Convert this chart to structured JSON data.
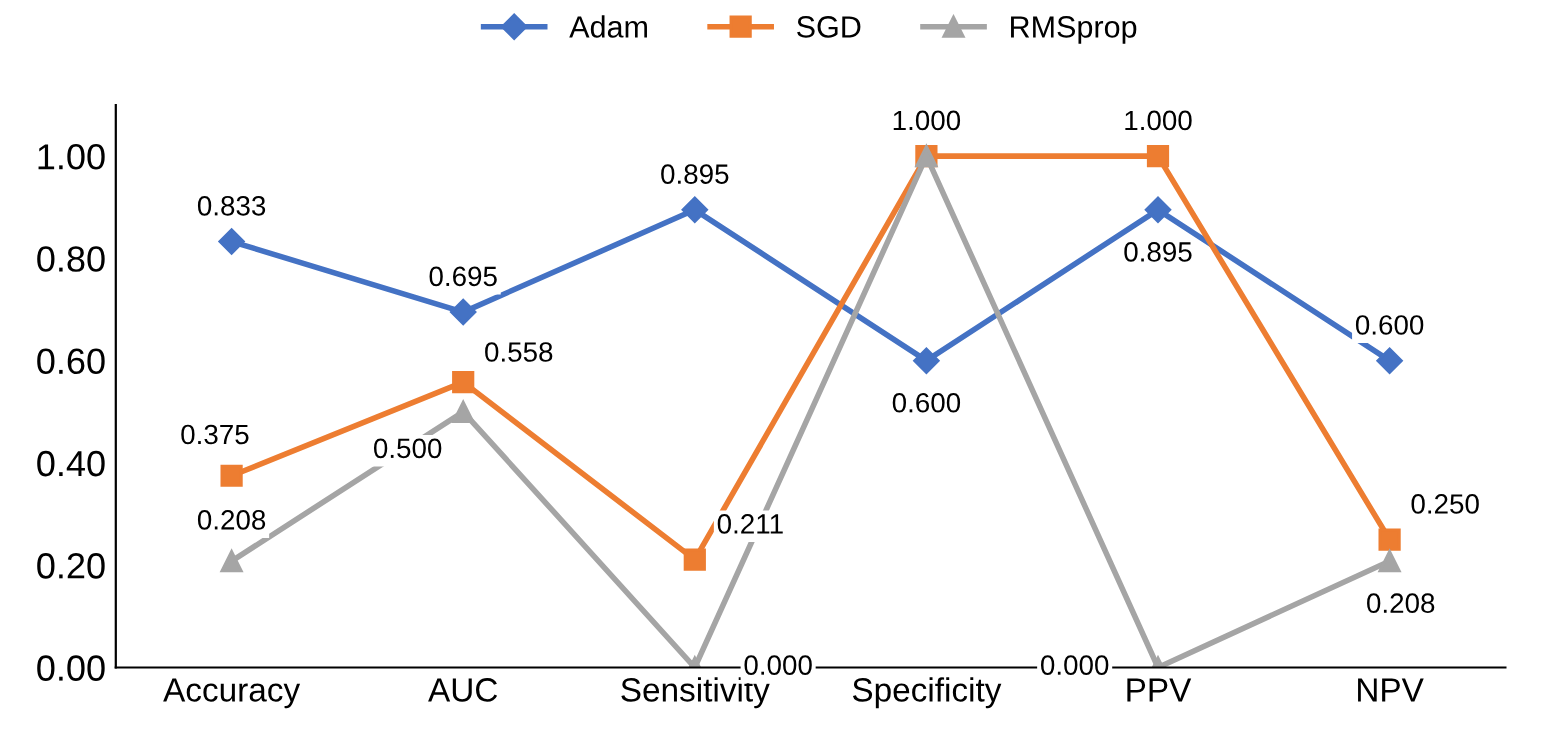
{
  "chart_data": {
    "type": "line",
    "categories": [
      "Accuracy",
      "AUC",
      "Sensitivity",
      "Specificity",
      "PPV",
      "NPV"
    ],
    "series": [
      {
        "name": "Adam",
        "color": "#4472c4",
        "marker": "diamond",
        "values": [
          0.833,
          0.695,
          0.895,
          0.6,
          0.895,
          0.6
        ],
        "value_labels": [
          "0.833",
          "0.695",
          "0.895",
          "0.600",
          "0.895",
          "0.600"
        ]
      },
      {
        "name": "SGD",
        "color": "#ed7d31",
        "marker": "square",
        "values": [
          0.375,
          0.558,
          0.211,
          1.0,
          1.0,
          0.25
        ],
        "value_labels": [
          "0.375",
          "0.558",
          "0.211",
          "1.000",
          "1.000",
          "0.250"
        ]
      },
      {
        "name": "RMSprop",
        "color": "#a5a5a5",
        "marker": "triangle",
        "values": [
          0.208,
          0.5,
          0.0,
          1.0,
          0.0,
          0.208
        ],
        "value_labels": [
          "0.208",
          "0.500",
          "0.000",
          null,
          "0.000",
          "0.208"
        ]
      }
    ],
    "ylim": [
      0,
      1.1
    ],
    "yticks": [
      {
        "value": 0,
        "label": "0.00"
      },
      {
        "value": 0.2,
        "label": "0.20"
      },
      {
        "value": 0.4,
        "label": "0.40"
      },
      {
        "value": 0.6,
        "label": "0.60"
      },
      {
        "value": 0.8,
        "label": "0.80"
      },
      {
        "value": 1.0,
        "label": "1.00"
      }
    ],
    "legend": "top",
    "grid": false
  }
}
